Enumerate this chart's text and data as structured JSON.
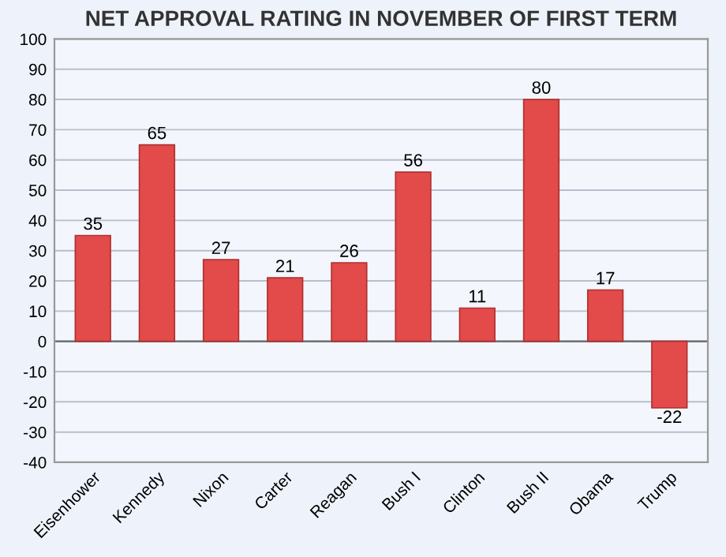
{
  "chart_data": {
    "type": "bar",
    "title": "NET APPROVAL RATING IN NOVEMBER OF FIRST TERM",
    "categories": [
      "Eisenhower",
      "Kennedy",
      "Nixon",
      "Carter",
      "Reagan",
      "Bush I",
      "Clinton",
      "Bush II",
      "Obama",
      "Trump"
    ],
    "values": [
      35,
      65,
      27,
      21,
      26,
      56,
      11,
      80,
      17,
      -22
    ],
    "color": "#e34a4a",
    "ylim": [
      -40,
      100
    ],
    "yticks": [
      -40,
      -30,
      -20,
      -10,
      0,
      10,
      20,
      30,
      40,
      50,
      60,
      70,
      80,
      90,
      100
    ],
    "grid": "y",
    "data_labels": true
  }
}
